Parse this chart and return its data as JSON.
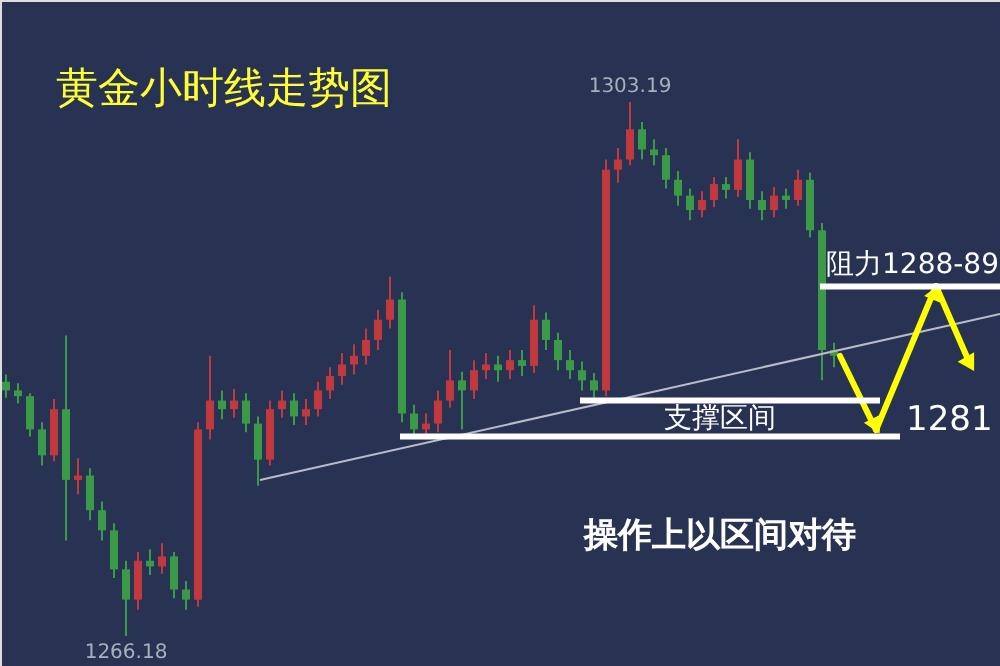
{
  "chart_data": {
    "type": "candlestick",
    "title": "黄金小时线走势图",
    "categories": [
      null,
      null,
      null,
      null,
      null,
      null,
      null,
      null,
      null,
      null,
      null,
      null,
      null,
      null,
      null,
      null,
      null,
      null,
      null,
      null,
      null,
      null,
      null,
      null,
      null,
      null,
      null,
      null,
      null,
      null,
      null,
      null,
      null,
      null,
      null,
      null,
      null,
      null,
      null,
      null,
      null,
      null,
      null,
      null,
      null,
      null,
      null,
      null,
      null,
      null,
      null,
      null,
      null,
      null,
      null,
      null,
      null,
      null,
      null,
      null,
      null,
      null,
      null,
      null,
      null,
      null,
      null,
      null,
      null,
      null
    ],
    "ohlc": [
      [
        1283.8,
        1284.3,
        1282.7,
        1283.2
      ],
      [
        1283.2,
        1283.7,
        1282.3,
        1282.8
      ],
      [
        1282.8,
        1283.0,
        1280.0,
        1280.5
      ],
      [
        1280.5,
        1281.0,
        1278.0,
        1278.7
      ],
      [
        1278.7,
        1282.6,
        1278.3,
        1281.9
      ],
      [
        1281.9,
        1287.0,
        1272.8,
        1277.0
      ],
      [
        1277.0,
        1278.5,
        1276.0,
        1277.3
      ],
      [
        1277.3,
        1277.8,
        1274.2,
        1274.9
      ],
      [
        1274.9,
        1275.5,
        1272.8,
        1273.5
      ],
      [
        1273.5,
        1274.0,
        1270.2,
        1270.8
      ],
      [
        1270.8,
        1271.4,
        1266.18,
        1268.7
      ],
      [
        1268.7,
        1272.0,
        1268.0,
        1271.4
      ],
      [
        1271.4,
        1272.2,
        1270.4,
        1271.0
      ],
      [
        1271.0,
        1272.6,
        1270.5,
        1271.7
      ],
      [
        1271.7,
        1272.0,
        1268.8,
        1269.4
      ],
      [
        1269.4,
        1270.0,
        1268.0,
        1268.7
      ],
      [
        1268.7,
        1281.0,
        1268.2,
        1280.5
      ],
      [
        1280.5,
        1285.6,
        1279.8,
        1282.5
      ],
      [
        1282.5,
        1283.2,
        1281.2,
        1281.9
      ],
      [
        1281.9,
        1283.3,
        1281.3,
        1282.5
      ],
      [
        1282.5,
        1283.0,
        1280.3,
        1280.9
      ],
      [
        1280.9,
        1281.4,
        1276.6,
        1278.4
      ],
      [
        1278.4,
        1282.5,
        1278.0,
        1281.9
      ],
      [
        1281.9,
        1283.2,
        1281.3,
        1282.5
      ],
      [
        1282.5,
        1283.0,
        1280.8,
        1281.4
      ],
      [
        1281.4,
        1282.6,
        1280.8,
        1281.9
      ],
      [
        1281.9,
        1283.8,
        1281.4,
        1283.2
      ],
      [
        1283.2,
        1284.8,
        1282.6,
        1284.2
      ],
      [
        1284.2,
        1285.8,
        1283.6,
        1285.0
      ],
      [
        1285.0,
        1286.4,
        1284.3,
        1285.6
      ],
      [
        1285.6,
        1287.5,
        1285.0,
        1286.7
      ],
      [
        1286.7,
        1288.8,
        1286.0,
        1288.1
      ],
      [
        1288.1,
        1291.1,
        1287.5,
        1289.5
      ],
      [
        1289.5,
        1290.0,
        1281.0,
        1281.6
      ],
      [
        1281.6,
        1282.2,
        1279.9,
        1280.5
      ],
      [
        1280.5,
        1281.6,
        1279.9,
        1280.9
      ],
      [
        1280.9,
        1283.2,
        1280.3,
        1282.5
      ],
      [
        1282.5,
        1286.0,
        1282.0,
        1283.9
      ],
      [
        1283.9,
        1284.5,
        1280.5,
        1283.2
      ],
      [
        1283.2,
        1285.3,
        1282.6,
        1284.6
      ],
      [
        1284.6,
        1285.8,
        1284.0,
        1285.0
      ],
      [
        1285.0,
        1285.6,
        1283.8,
        1284.6
      ],
      [
        1284.6,
        1286.0,
        1284.0,
        1285.3
      ],
      [
        1285.3,
        1286.0,
        1284.2,
        1284.9
      ],
      [
        1284.9,
        1289.1,
        1284.4,
        1288.1
      ],
      [
        1288.1,
        1288.6,
        1286.0,
        1286.7
      ],
      [
        1286.7,
        1287.2,
        1284.6,
        1285.3
      ],
      [
        1285.3,
        1286.0,
        1284.0,
        1284.6
      ],
      [
        1284.6,
        1285.2,
        1283.2,
        1283.9
      ],
      [
        1283.9,
        1284.4,
        1282.6,
        1283.2
      ],
      [
        1283.2,
        1299.2,
        1282.8,
        1298.5
      ],
      [
        1298.5,
        1300.0,
        1297.6,
        1299.2
      ],
      [
        1299.2,
        1303.19,
        1298.8,
        1301.3
      ],
      [
        1301.3,
        1301.8,
        1299.2,
        1299.9
      ],
      [
        1299.9,
        1300.6,
        1298.8,
        1299.5
      ],
      [
        1299.5,
        1300.0,
        1297.2,
        1297.8
      ],
      [
        1297.8,
        1298.4,
        1296.0,
        1296.7
      ],
      [
        1296.7,
        1297.2,
        1295.0,
        1295.7
      ],
      [
        1295.7,
        1297.0,
        1295.2,
        1296.4
      ],
      [
        1296.4,
        1298.0,
        1295.9,
        1297.5
      ],
      [
        1297.5,
        1298.0,
        1296.5,
        1297.1
      ],
      [
        1297.1,
        1300.6,
        1296.6,
        1299.2
      ],
      [
        1299.2,
        1299.7,
        1295.8,
        1296.4
      ],
      [
        1296.4,
        1297.0,
        1295.0,
        1295.7
      ],
      [
        1295.7,
        1297.3,
        1295.2,
        1296.7
      ],
      [
        1296.7,
        1297.2,
        1295.8,
        1296.4
      ],
      [
        1296.4,
        1298.5,
        1296.0,
        1297.8
      ],
      [
        1297.8,
        1298.3,
        1293.8,
        1294.3
      ],
      [
        1294.3,
        1294.8,
        1283.9,
        1286.0
      ],
      [
        1286.0,
        1286.5,
        1284.8,
        1285.6
      ]
    ],
    "colors": [
      "#3a9a48",
      "#3a9a48",
      "#3a9a48",
      "#3a9a48",
      "#c0393f",
      "#3a9a48",
      "#c0393f",
      "#3a9a48",
      "#3a9a48",
      "#3a9a48",
      "#3a9a48",
      "#c0393f",
      "#3a9a48",
      "#c0393f",
      "#3a9a48",
      "#3a9a48",
      "#c0393f",
      "#c0393f",
      "#3a9a48",
      "#c0393f",
      "#3a9a48",
      "#3a9a48",
      "#c0393f",
      "#c0393f",
      "#3a9a48",
      "#c0393f",
      "#c0393f",
      "#c0393f",
      "#c0393f",
      "#c0393f",
      "#c0393f",
      "#c0393f",
      "#c0393f",
      "#3a9a48",
      "#3a9a48",
      "#c0393f",
      "#c0393f",
      "#c0393f",
      "#3a9a48",
      "#c0393f",
      "#c0393f",
      "#3a9a48",
      "#c0393f",
      "#3a9a48",
      "#c0393f",
      "#3a9a48",
      "#3a9a48",
      "#3a9a48",
      "#3a9a48",
      "#3a9a48",
      "#c0393f",
      "#c0393f",
      "#c0393f",
      "#3a9a48",
      "#3a9a48",
      "#3a9a48",
      "#3a9a48",
      "#3a9a48",
      "#c0393f",
      "#c0393f",
      "#3a9a48",
      "#c0393f",
      "#3a9a48",
      "#3a9a48",
      "#c0393f",
      "#3a9a48",
      "#c0393f",
      "#3a9a48",
      "#3a9a48",
      "#3a9a48"
    ],
    "ref_lines": [
      {
        "axis": "y",
        "value": 1290.4,
        "label": "阻力1288-89",
        "color": "#ffffff"
      },
      {
        "axis": "y",
        "value": 1282.5,
        "color": "#ffffff"
      },
      {
        "axis": "y",
        "value": 1280.0,
        "label": "支撑区间",
        "color": "#ffffff"
      }
    ],
    "tick_labels": false,
    "grid": false,
    "annotations": [
      {
        "text": "1303.19",
        "y": 1303.19
      },
      {
        "text": "1266.18",
        "y": 1266.18
      },
      "1281",
      "操作上以区间对待"
    ]
  }
}
